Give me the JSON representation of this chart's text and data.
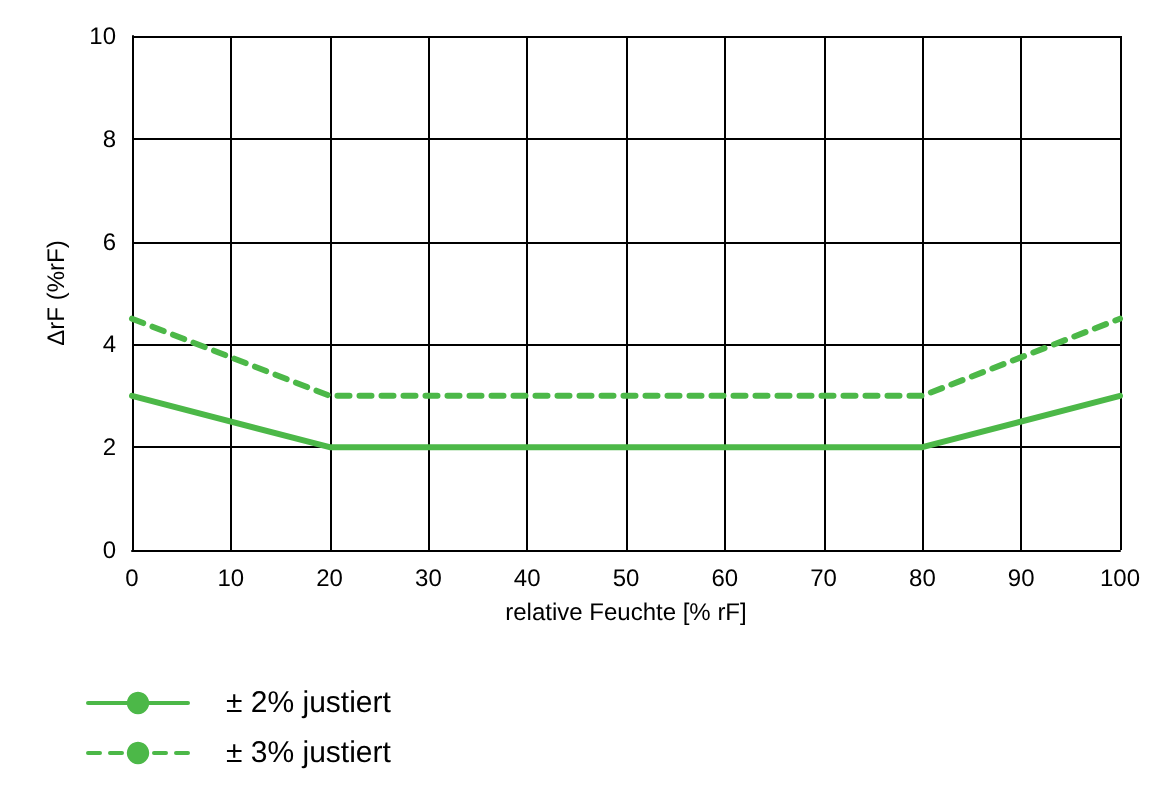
{
  "chart_data": {
    "type": "line",
    "xlabel": "relative Feuchte [% rF]",
    "ylabel": "ΔrF (%rF)",
    "xlim": [
      0,
      100
    ],
    "xticks": [
      0,
      10,
      20,
      30,
      40,
      50,
      60,
      70,
      80,
      90,
      100
    ],
    "ylim": [
      0,
      10
    ],
    "yticks": [
      0,
      2,
      4,
      6,
      8,
      10
    ],
    "grid": true,
    "legend": "bottom left",
    "marker": "none",
    "series": [
      {
        "name": "± 2% justiert",
        "color": "#4cb848",
        "x": [
          0,
          20,
          80,
          100
        ],
        "values": [
          3,
          2,
          2,
          3
        ],
        "line_style": "solid"
      },
      {
        "name": "± 3% justiert",
        "color": "#4cb848",
        "x": [
          0,
          20,
          80,
          100
        ],
        "values": [
          4.5,
          3,
          3,
          4.5
        ],
        "line_style": "dashed"
      }
    ]
  }
}
